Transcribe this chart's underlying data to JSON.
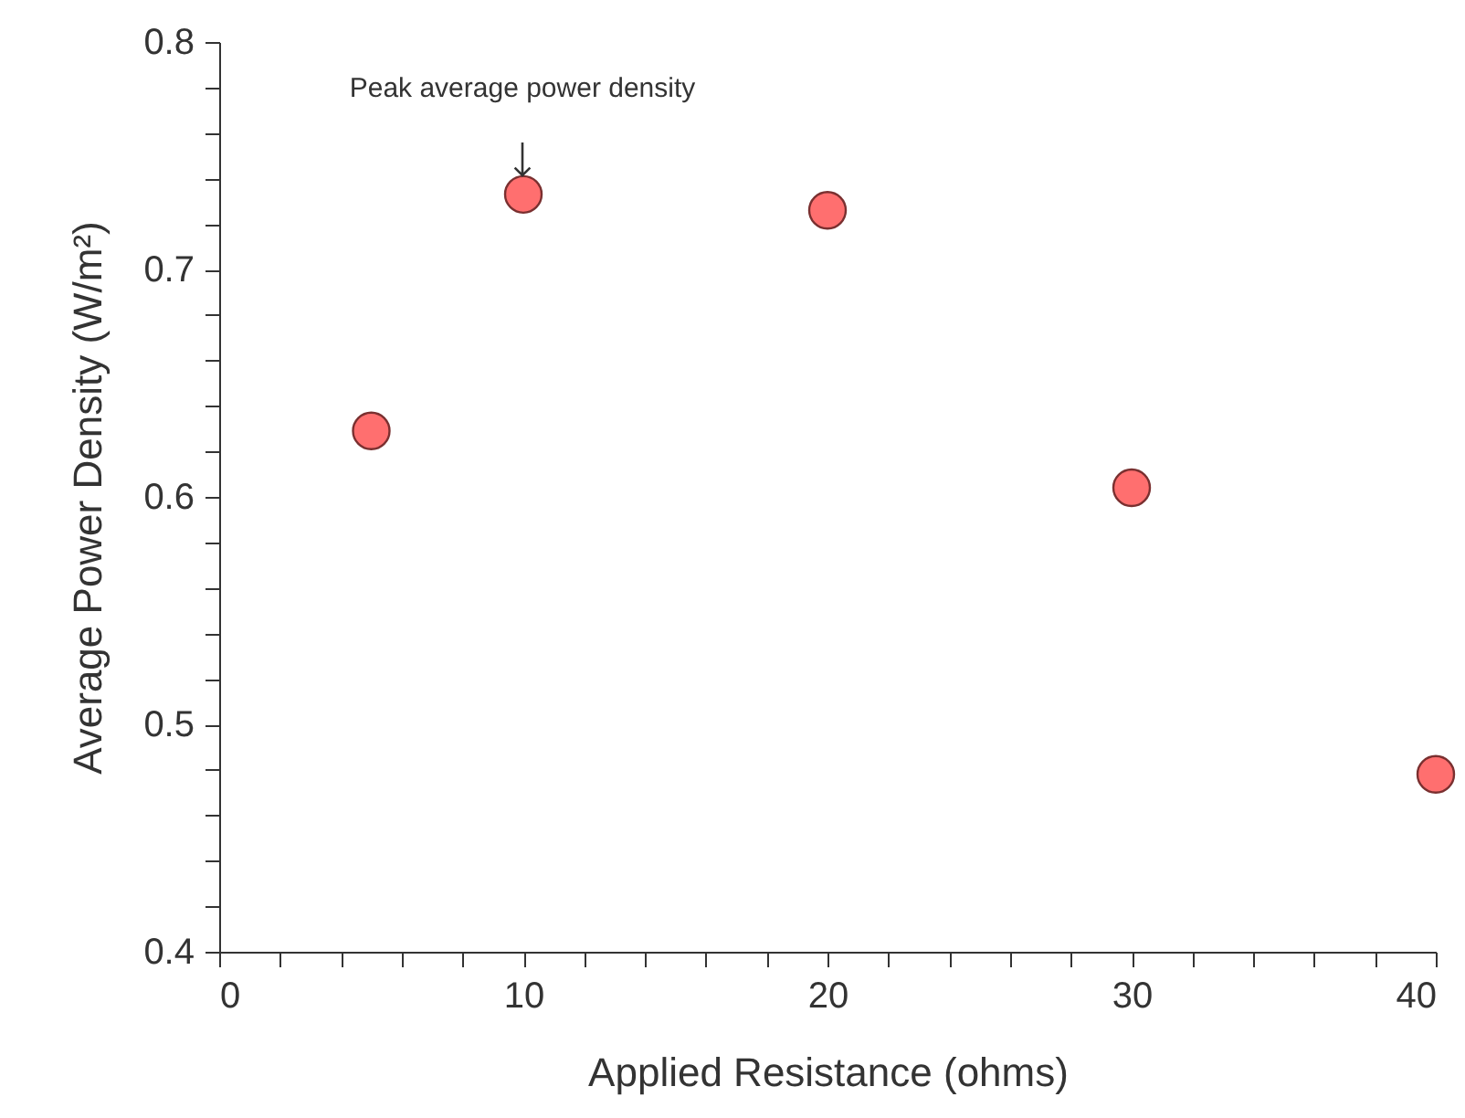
{
  "chart_data": {
    "type": "scatter",
    "xlabel": "Applied Resistance (ohms)",
    "ylabel": "Average Power Density (W/m²)",
    "x": [
      5,
      10,
      20,
      30,
      40
    ],
    "series": [
      {
        "color": "#ff6f6f",
        "values": [
          0.629,
          0.733,
          0.726,
          0.604,
          0.478
        ]
      }
    ],
    "marker": "circle",
    "xlim": [
      0,
      40
    ],
    "ylim": [
      0.4,
      0.8
    ],
    "xticks": [
      0,
      {
        "value": 2,
        "label": null
      },
      {
        "value": 4,
        "label": null
      },
      {
        "value": 6,
        "label": null
      },
      {
        "value": 8,
        "label": null
      },
      10,
      {
        "value": 12,
        "label": null
      },
      {
        "value": 14,
        "label": null
      },
      {
        "value": 16,
        "label": null
      },
      {
        "value": 18,
        "label": null
      },
      20,
      {
        "value": 22,
        "label": null
      },
      {
        "value": 24,
        "label": null
      },
      {
        "value": 26,
        "label": null
      },
      {
        "value": 28,
        "label": null
      },
      30,
      {
        "value": 32,
        "label": null
      },
      {
        "value": 34,
        "label": null
      },
      {
        "value": 36,
        "label": null
      },
      {
        "value": 38,
        "label": null
      },
      40
    ],
    "yticks": [
      {
        "value": 0.4,
        "label": "0.4"
      },
      {
        "value": 0.42,
        "label": null
      },
      {
        "value": 0.44,
        "label": null
      },
      {
        "value": 0.46,
        "label": null
      },
      {
        "value": 0.48,
        "label": null
      },
      {
        "value": 0.5,
        "label": "0.5"
      },
      {
        "value": 0.52,
        "label": null
      },
      {
        "value": 0.54,
        "label": null
      },
      {
        "value": 0.56,
        "label": null
      },
      {
        "value": 0.58,
        "label": null
      },
      {
        "value": 0.6,
        "label": "0.6"
      },
      {
        "value": 0.62,
        "label": null
      },
      {
        "value": 0.64,
        "label": null
      },
      {
        "value": 0.66,
        "label": null
      },
      {
        "value": 0.68,
        "label": null
      },
      {
        "value": 0.7,
        "label": "0.7"
      },
      {
        "value": 0.72,
        "label": null
      },
      {
        "value": 0.74,
        "label": null
      },
      {
        "value": 0.76,
        "label": null
      },
      {
        "value": 0.78,
        "label": null
      },
      {
        "value": 0.8,
        "label": "0.8"
      }
    ],
    "annotations": [
      "Peak average power density"
    ]
  }
}
